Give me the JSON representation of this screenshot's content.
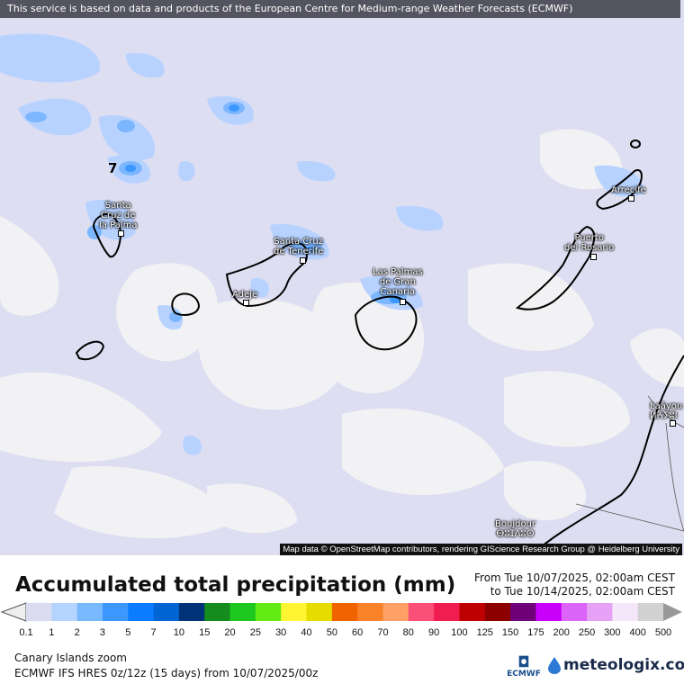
{
  "banner": "This service is based on data and products of the European Centre for Medium-range Weather Forecasts (ECMWF)",
  "attribution": "Map data © OpenStreetMap contributors, rendering GIScience Research Group @ Heidelberg University",
  "max_label": "7",
  "cities": [
    {
      "name": "Santa\nCruz de\nla Palma"
    },
    {
      "name": "Santa Cruz\nde Tenerife"
    },
    {
      "name": "Adeje"
    },
    {
      "name": "Las Palmas\nde Gran\nCanaria"
    },
    {
      "name": "Puerto\ndel Rosario"
    },
    {
      "name": "Arrecife"
    },
    {
      "name": "Laâyou\nⵍⵄⵢⵓⵏ"
    },
    {
      "name": "Boujdour\nⴱⵓⵊⴷⵓⵔ"
    }
  ],
  "legend": {
    "title": "Accumulated total precipitation (mm)",
    "from": "From Tue 10/07/2025, 02:00am CEST",
    "to": "to Tue 10/14/2025, 02:00am CEST",
    "ticks": [
      "0.1",
      "1",
      "2",
      "3",
      "5",
      "7",
      "10",
      "15",
      "20",
      "25",
      "30",
      "40",
      "50",
      "60",
      "70",
      "80",
      "90",
      "100",
      "125",
      "150",
      "175",
      "200",
      "250",
      "300",
      "400",
      "500"
    ],
    "colors": [
      "#dcdcf0",
      "#b4d4ff",
      "#78b8ff",
      "#3c98ff",
      "#0a7cff",
      "#0064d2",
      "#003278",
      "#148c1e",
      "#1ec81e",
      "#64eb14",
      "#fff532",
      "#e6dc00",
      "#f06400",
      "#fa8228",
      "#ffa064",
      "#fa5078",
      "#f01e50",
      "#be0000",
      "#8c0000",
      "#6e0078",
      "#c800fa",
      "#dc64fa",
      "#e6a0f5",
      "#f5e6fa",
      "#d2d2d2"
    ]
  },
  "region": "Canary Islands zoom",
  "model": "ECMWF IFS HRES 0z/12z (15 days) from  10/07/2025/00z",
  "logos": {
    "ecmwf": "ECMWF",
    "meteologix": "meteologix.com"
  }
}
